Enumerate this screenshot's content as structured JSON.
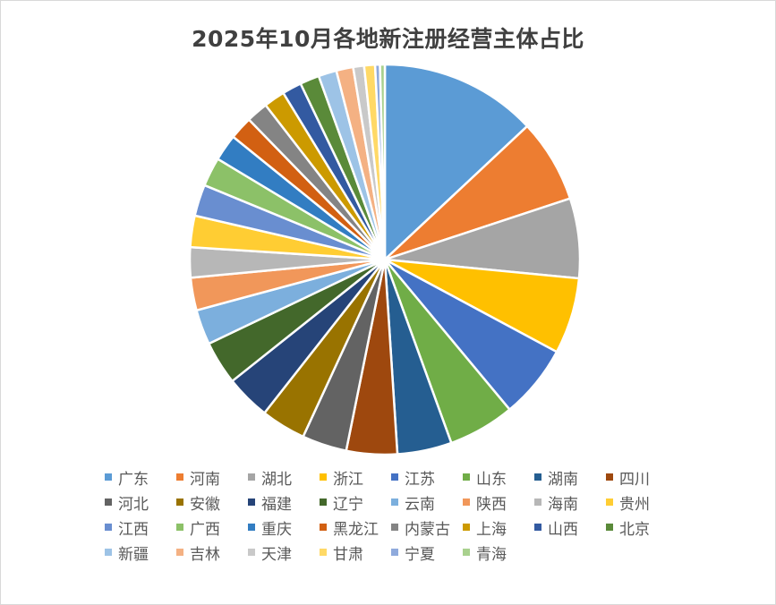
{
  "chart_data": {
    "type": "pie",
    "title": "2025年10月各地新注册经营主体占比",
    "legend_position": "bottom",
    "start_angle_deg": 0,
    "direction": "clockwise",
    "categories": [
      "广东",
      "河南",
      "湖北",
      "浙江",
      "江苏",
      "山东",
      "湖南",
      "四川",
      "河北",
      "安徽",
      "福建",
      "辽宁",
      "云南",
      "陕西",
      "海南",
      "贵州",
      "江西",
      "广西",
      "重庆",
      "黑龙江",
      "内蒙古",
      "上海",
      "山西",
      "北京",
      "新疆",
      "吉林",
      "天津",
      "甘肃",
      "宁夏",
      "青海"
    ],
    "values": [
      13.0,
      6.9,
      6.6,
      6.3,
      6.1,
      5.5,
      4.5,
      4.2,
      3.7,
      3.7,
      3.7,
      3.6,
      2.9,
      2.7,
      2.5,
      2.6,
      2.6,
      2.4,
      2.2,
      1.9,
      1.8,
      1.75,
      1.6,
      1.6,
      1.5,
      1.4,
      0.9,
      0.9,
      0.4,
      0.4
    ],
    "unit": "%",
    "colors": [
      "#5B9BD5",
      "#ED7D31",
      "#A5A5A5",
      "#FFC000",
      "#4472C4",
      "#70AD47",
      "#255E91",
      "#9E480E",
      "#636363",
      "#997300",
      "#264478",
      "#43682B",
      "#7CAFDD",
      "#F1975A",
      "#B7B7B7",
      "#FFCD33",
      "#698ED0",
      "#8CC168",
      "#327DC2",
      "#D26012",
      "#848484",
      "#CC9A00",
      "#335AA1",
      "#5A8A39",
      "#9DC3E6",
      "#F4B183",
      "#C9C9C9",
      "#FFD966",
      "#8FAADC",
      "#A9D18E"
    ]
  }
}
